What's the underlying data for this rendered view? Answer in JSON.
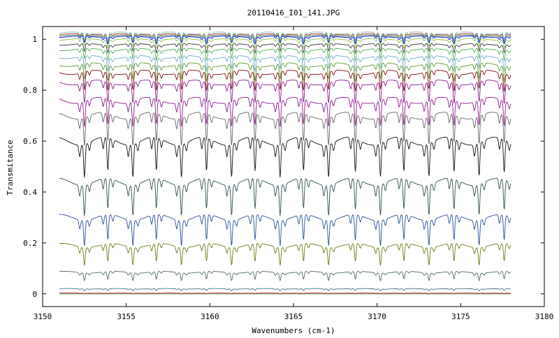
{
  "chart_data": {
    "type": "line",
    "title": "20110416_I01_141.JPG",
    "xlabel": "Wavenumbers (cm-1)",
    "ylabel": "Transmitance",
    "xlim": [
      3150,
      3180
    ],
    "ylim": [
      -0.05,
      1.05
    ],
    "x_ticks": [
      3150,
      3155,
      3160,
      3165,
      3170,
      3175,
      3180
    ],
    "x_tick_labels": [
      "3150",
      "3155",
      "3160",
      "3165",
      "3170",
      "3175",
      "3180"
    ],
    "y_ticks": [
      0,
      0.2,
      0.4,
      0.6,
      0.8,
      1
    ],
    "y_tick_labels": [
      "0",
      "0.2",
      "0.4",
      "0.6",
      "0.8",
      "1"
    ],
    "grid": false,
    "legend": "none",
    "x_range_of_data": [
      3151,
      3178
    ],
    "absorption_lines_x": [
      3152.5,
      3153.9,
      3155.4,
      3156.8,
      3158.3,
      3159.8,
      3161.3,
      3162.7,
      3164.2,
      3165.6,
      3167.1,
      3168.7,
      3170.2,
      3171.6,
      3173.1,
      3174.6,
      3176.1,
      3177.6
    ],
    "series": [
      {
        "baseline": 0.0,
        "depth": 0.0,
        "color": "#2e7d32"
      },
      {
        "baseline": 0.003,
        "depth": 0.002,
        "color": "#c62828"
      },
      {
        "baseline": 0.02,
        "depth": 0.008,
        "color": "#3b6e8f"
      },
      {
        "baseline": 0.085,
        "depth": 0.03,
        "color": "#4f6f58"
      },
      {
        "baseline": 0.19,
        "depth": 0.07,
        "color": "#6b7a16"
      },
      {
        "baseline": 0.3,
        "depth": 0.1,
        "color": "#274e9b"
      },
      {
        "baseline": 0.44,
        "depth": 0.12,
        "color": "#2f4f4f"
      },
      {
        "baseline": 0.6,
        "depth": 0.13,
        "color": "#111111"
      },
      {
        "baseline": 0.7,
        "depth": 0.11,
        "color": "#666666"
      },
      {
        "baseline": 0.76,
        "depth": 0.1,
        "color": "#8b1a8b"
      },
      {
        "baseline": 0.83,
        "depth": 0.08,
        "color": "#8b1a8b"
      },
      {
        "baseline": 0.87,
        "depth": 0.07,
        "color": "#7a1010"
      },
      {
        "baseline": 0.9,
        "depth": 0.06,
        "color": "#5a9a2a"
      },
      {
        "baseline": 0.93,
        "depth": 0.05,
        "color": "#6fa8c8"
      },
      {
        "baseline": 0.96,
        "depth": 0.04,
        "color": "#4caf50"
      },
      {
        "baseline": 0.98,
        "depth": 0.03,
        "color": "#333333"
      },
      {
        "baseline": 1.0,
        "depth": 0.03,
        "color": "#8bc34a"
      },
      {
        "baseline": 1.01,
        "depth": 0.025,
        "color": "#0000ff"
      },
      {
        "baseline": 1.015,
        "depth": 0.02,
        "color": "#2e7d32"
      },
      {
        "baseline": 1.02,
        "depth": 0.02,
        "color": "#c62828"
      },
      {
        "baseline": 1.025,
        "depth": 0.03,
        "color": "#80cbc4"
      }
    ]
  }
}
